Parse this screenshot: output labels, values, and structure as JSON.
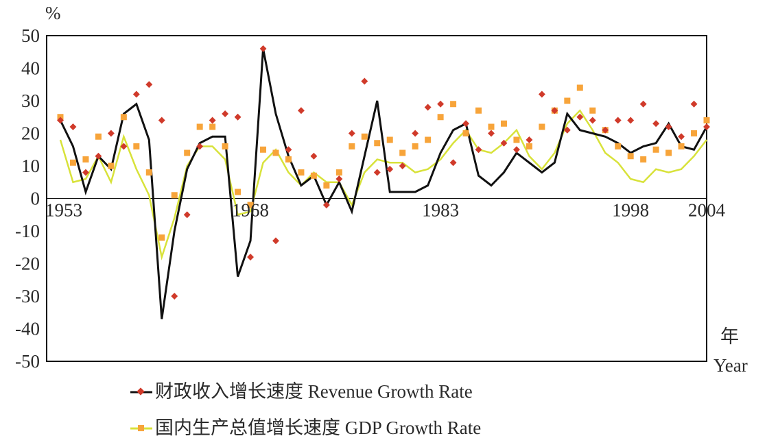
{
  "chart_data": {
    "type": "line",
    "ylabel": "%",
    "xlabel_cn": "年",
    "xlabel_en": "Year",
    "ylim": [
      -50,
      50
    ],
    "yticks": [
      "50",
      "40",
      "30",
      "20",
      "10",
      "0",
      "-10",
      "-20",
      "-30",
      "-40",
      "-50"
    ],
    "x_tick_labels": [
      "1953",
      "1968",
      "1983",
      "1998",
      "2004"
    ],
    "x_tick_years": [
      1953,
      1968,
      1983,
      1998,
      2004
    ],
    "x_range": [
      1953,
      2004
    ],
    "colors": {
      "revenue_line": "#111111",
      "revenue_marker": "#d03a2a",
      "gdp_line": "#d8e23a",
      "gdp_marker": "#f7a43a"
    },
    "series": [
      {
        "name": "财政收入增长速度 Revenue Growth Rate",
        "x": [
          1953,
          1954,
          1955,
          1956,
          1957,
          1958,
          1959,
          1960,
          1961,
          1962,
          1963,
          1964,
          1965,
          1966,
          1967,
          1968,
          1969,
          1970,
          1971,
          1972,
          1973,
          1974,
          1975,
          1976,
          1977,
          1978,
          1979,
          1980,
          1981,
          1982,
          1983,
          1984,
          1985,
          1986,
          1987,
          1988,
          1989,
          1990,
          1991,
          1992,
          1993,
          1994,
          1995,
          1996,
          1997,
          1998,
          1999,
          2000,
          2001,
          2002,
          2003,
          2004
        ],
        "line": [
          24,
          16,
          2,
          13,
          9,
          26,
          29,
          18,
          -37,
          -10,
          9,
          17,
          19,
          19,
          -24,
          -13,
          46,
          26,
          13,
          4,
          7,
          -2,
          5,
          -4,
          13,
          30,
          2,
          2,
          2,
          4,
          14,
          21,
          23,
          7,
          4,
          8,
          14,
          11,
          8,
          11,
          26,
          21,
          20,
          19,
          17,
          14,
          16,
          17,
          23,
          16,
          15,
          22
        ],
        "markers": [
          24,
          22,
          8,
          13,
          20,
          16,
          32,
          35,
          24,
          -30,
          -5,
          16,
          24,
          26,
          25,
          -18,
          46,
          -13,
          15,
          27,
          13,
          -2,
          6,
          20,
          36,
          8,
          9,
          10,
          20,
          28,
          29,
          11,
          23,
          15,
          20,
          17,
          15,
          18,
          32,
          27,
          21,
          25,
          24,
          21,
          24,
          24,
          29,
          23,
          22,
          19,
          29,
          22
        ]
      },
      {
        "name": "国内生产总值增长速度 GDP Growth Rate",
        "x": [
          1953,
          1954,
          1955,
          1956,
          1957,
          1958,
          1959,
          1960,
          1961,
          1962,
          1963,
          1964,
          1965,
          1966,
          1967,
          1968,
          1969,
          1970,
          1971,
          1972,
          1973,
          1974,
          1975,
          1976,
          1977,
          1978,
          1979,
          1980,
          1981,
          1982,
          1983,
          1984,
          1985,
          1986,
          1987,
          1988,
          1989,
          1990,
          1991,
          1992,
          1993,
          1994,
          1995,
          1996,
          1997,
          1998,
          1999,
          2000,
          2001,
          2002,
          2003,
          2004
        ],
        "line": [
          18,
          5,
          6,
          13,
          5,
          19,
          9,
          1,
          -18,
          -6,
          10,
          16,
          16,
          12,
          -5,
          -4,
          11,
          15,
          8,
          4,
          8,
          5,
          5,
          -2,
          8,
          12,
          11,
          11,
          8,
          9,
          12,
          17,
          21,
          15,
          14,
          17,
          21,
          13,
          9,
          14,
          23,
          27,
          21,
          14,
          11,
          6,
          5,
          9,
          8,
          9,
          13,
          18
        ],
        "markers": [
          25,
          11,
          12,
          19,
          10,
          25,
          16,
          8,
          -12,
          1,
          14,
          22,
          22,
          16,
          2,
          -2,
          15,
          14,
          12,
          8,
          7,
          4,
          8,
          16,
          19,
          17,
          18,
          14,
          16,
          18,
          25,
          29,
          20,
          27,
          22,
          23,
          18,
          16,
          22,
          27,
          30,
          34,
          27,
          21,
          16,
          13,
          12,
          15,
          14,
          16,
          20,
          24
        ]
      }
    ]
  }
}
